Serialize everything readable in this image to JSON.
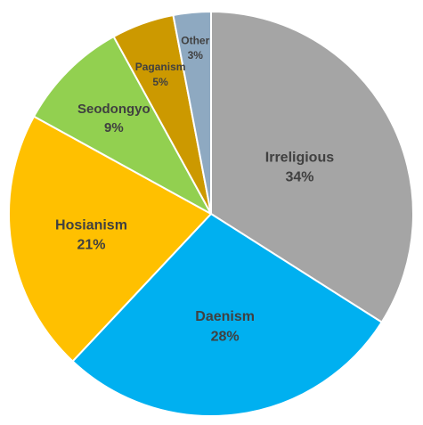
{
  "chart_data": {
    "type": "pie",
    "title": "",
    "categories": [
      "Irreligious",
      "Daenism",
      "Hosianism",
      "Seodongyo",
      "Paganism",
      "Other"
    ],
    "values": [
      34,
      28,
      21,
      9,
      5,
      3
    ],
    "value_labels": [
      "34%",
      "28%",
      "21%",
      "9%",
      "5%",
      "3%"
    ],
    "colors": [
      "#a5a5a5",
      "#00b0f0",
      "#ffc000",
      "#92d050",
      "#cc9900",
      "#8ea9c1"
    ],
    "start": "12 o'clock",
    "direction": "clockwise",
    "legend": "none"
  }
}
